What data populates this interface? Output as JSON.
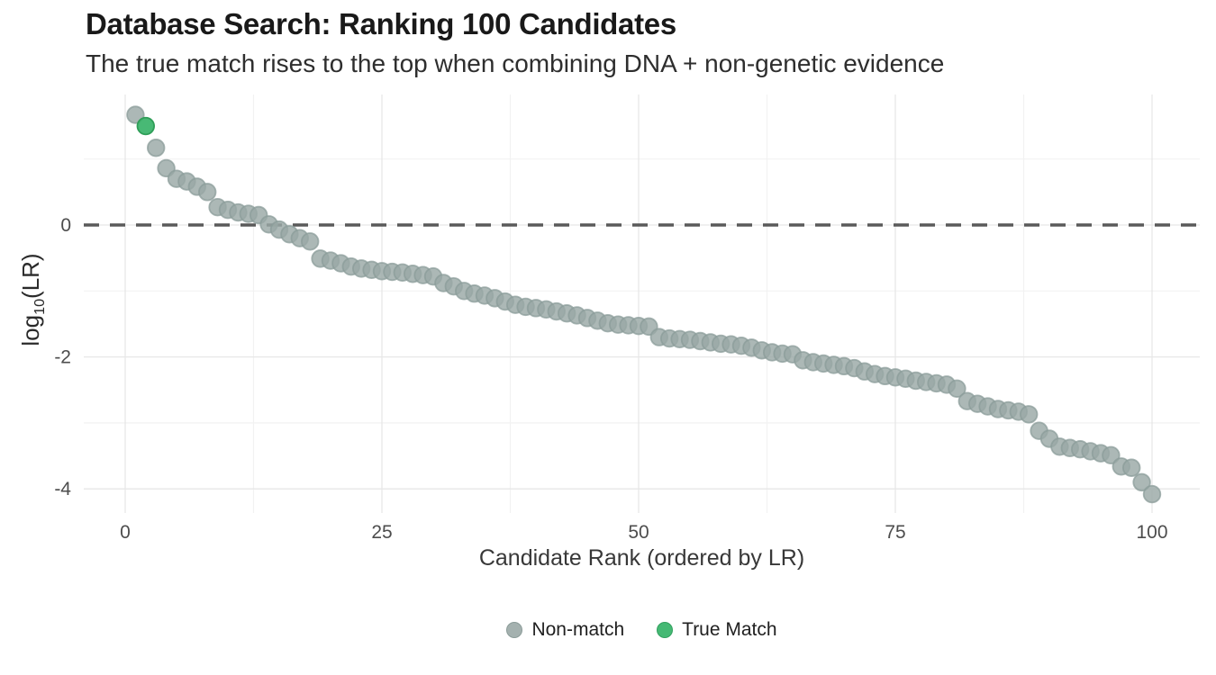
{
  "header": {
    "title": "Database Search: Ranking 100 Candidates",
    "subtitle": "The true match rises to the top when combining DNA + non-genetic evidence"
  },
  "chart_data": {
    "type": "scatter",
    "title": "Database Search: Ranking 100 Candidates",
    "subtitle": "The true match rises to the top when combining DNA + non-genetic evidence",
    "xlabel": "Candidate Rank (ordered by LR)",
    "ylabel": "log10(LR)",
    "ylabel_parts": {
      "prefix": "log",
      "sub": "10",
      "suffix": "(LR)"
    },
    "xlim": [
      -4,
      105
    ],
    "ylim": [
      -4.37,
      1.98
    ],
    "x_ticks": [
      0,
      25,
      50,
      75,
      100
    ],
    "x_minor_gridlines": [
      12.5,
      37.5,
      62.5,
      87.5
    ],
    "y_ticks": [
      0,
      -2,
      -4
    ],
    "y_minor_gridlines": [
      1,
      -1,
      -3
    ],
    "grid": "on",
    "reference_line_y": 0,
    "legend_position": "bottom-center",
    "true_match_rank": 2,
    "values_by_rank_1_to_100": [
      1.67,
      1.5,
      1.17,
      0.86,
      0.7,
      0.66,
      0.58,
      0.5,
      0.27,
      0.23,
      0.19,
      0.17,
      0.15,
      0.01,
      -0.07,
      -0.14,
      -0.2,
      -0.25,
      -0.51,
      -0.54,
      -0.58,
      -0.63,
      -0.66,
      -0.68,
      -0.7,
      -0.71,
      -0.72,
      -0.74,
      -0.76,
      -0.78,
      -0.88,
      -0.93,
      -1.0,
      -1.04,
      -1.07,
      -1.11,
      -1.16,
      -1.21,
      -1.24,
      -1.26,
      -1.28,
      -1.31,
      -1.34,
      -1.37,
      -1.41,
      -1.45,
      -1.49,
      -1.51,
      -1.52,
      -1.53,
      -1.54,
      -1.7,
      -1.72,
      -1.73,
      -1.74,
      -1.76,
      -1.78,
      -1.8,
      -1.81,
      -1.83,
      -1.86,
      -1.9,
      -1.93,
      -1.95,
      -1.96,
      -2.05,
      -2.08,
      -2.1,
      -2.12,
      -2.14,
      -2.17,
      -2.22,
      -2.26,
      -2.29,
      -2.31,
      -2.33,
      -2.36,
      -2.38,
      -2.4,
      -2.42,
      -2.48,
      -2.67,
      -2.71,
      -2.75,
      -2.79,
      -2.81,
      -2.83,
      -2.87,
      -3.12,
      -3.24,
      -3.36,
      -3.38,
      -3.4,
      -3.43,
      -3.46,
      -3.49,
      -3.66,
      -3.68,
      -3.9,
      -4.08
    ],
    "legend": [
      {
        "label": "Non-match",
        "color": "#a4b1af",
        "stroke": "#8b9c99"
      },
      {
        "label": "True Match",
        "color": "#45b974",
        "stroke": "#32a05f"
      }
    ],
    "colors": {
      "non_match_fill": "#9aa8a6",
      "non_match_stroke": "#8b9c99",
      "true_match_fill": "#3eb56e",
      "true_match_stroke": "#2f9e58",
      "reference_line": "#5a5a5a",
      "grid_major": "#e7e7e7",
      "grid_minor": "#f2f2f2",
      "tick_label": "#4d4d4d"
    }
  }
}
